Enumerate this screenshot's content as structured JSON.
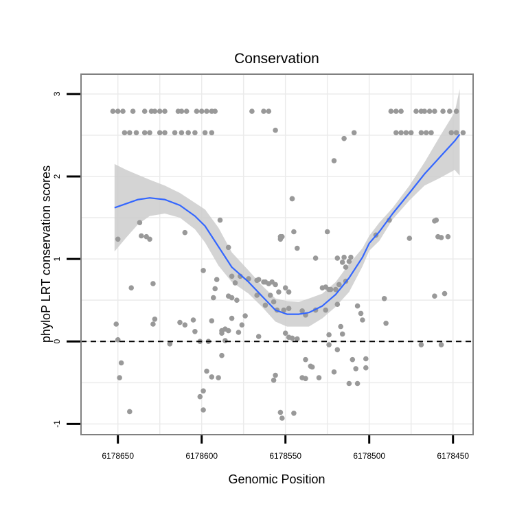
{
  "chart_data": {
    "type": "scatter",
    "title": "Conservation",
    "xlabel": "Genomic Position",
    "ylabel": "phyloP LRT conservation scores",
    "xlim": [
      6178672,
      6178438
    ],
    "ylim": [
      -1.13,
      3.24
    ],
    "x_reversed": true,
    "grid": true,
    "xticks": [
      6178650,
      6178600,
      6178550,
      6178500,
      6178450
    ],
    "xtick_labels": [
      "6178650",
      "6178600",
      "6178550",
      "6178500",
      "6178450"
    ],
    "yticks": [
      -1,
      0,
      1,
      2,
      3
    ],
    "ytick_labels": [
      "-1",
      "0",
      "1",
      "2",
      "3"
    ],
    "reference_line": {
      "y": 0,
      "style": "dashed",
      "color": "#000000"
    },
    "colors": {
      "points": "#999999",
      "smooth_line": "#3366FF",
      "confidence_band": "#cccccc",
      "panel_border": "#808080",
      "grid": "#ebebeb"
    },
    "points": [
      [
        6178653,
        2.79
      ],
      [
        6178650,
        2.79
      ],
      [
        6178647,
        2.79
      ],
      [
        6178641,
        2.79
      ],
      [
        6178634,
        2.79
      ],
      [
        6178630,
        2.79
      ],
      [
        6178628,
        2.79
      ],
      [
        6178625,
        2.79
      ],
      [
        6178622,
        2.79
      ],
      [
        6178614,
        2.79
      ],
      [
        6178612,
        2.79
      ],
      [
        6178609,
        2.79
      ],
      [
        6178603,
        2.79
      ],
      [
        6178600,
        2.79
      ],
      [
        6178597,
        2.79
      ],
      [
        6178594,
        2.79
      ],
      [
        6178592,
        2.79
      ],
      [
        6178570,
        2.79
      ],
      [
        6178563,
        2.79
      ],
      [
        6178560,
        2.79
      ],
      [
        6178487,
        2.79
      ],
      [
        6178484,
        2.79
      ],
      [
        6178481,
        2.79
      ],
      [
        6178472,
        2.79
      ],
      [
        6178469,
        2.79
      ],
      [
        6178467,
        2.79
      ],
      [
        6178464,
        2.79
      ],
      [
        6178461,
        2.79
      ],
      [
        6178456,
        2.79
      ],
      [
        6178452,
        2.79
      ],
      [
        6178448,
        2.79
      ],
      [
        6178646,
        2.53
      ],
      [
        6178643,
        2.53
      ],
      [
        6178639,
        2.53
      ],
      [
        6178634,
        2.53
      ],
      [
        6178631,
        2.53
      ],
      [
        6178625,
        2.53
      ],
      [
        6178622,
        2.53
      ],
      [
        6178616,
        2.53
      ],
      [
        6178612,
        2.53
      ],
      [
        6178608,
        2.53
      ],
      [
        6178604,
        2.53
      ],
      [
        6178598,
        2.53
      ],
      [
        6178594,
        2.53
      ],
      [
        6178484,
        2.53
      ],
      [
        6178481,
        2.53
      ],
      [
        6178478,
        2.53
      ],
      [
        6178475,
        2.53
      ],
      [
        6178469,
        2.53
      ],
      [
        6178466,
        2.53
      ],
      [
        6178463,
        2.53
      ],
      [
        6178451,
        2.53
      ],
      [
        6178448,
        2.53
      ],
      [
        6178444,
        2.53
      ],
      [
        6178556,
        2.56
      ],
      [
        6178515,
        2.46
      ],
      [
        6178509,
        2.53
      ],
      [
        6178521,
        2.19
      ],
      [
        6178546,
        1.73
      ],
      [
        6178546,
        1.73
      ],
      [
        6178488,
        1.47
      ],
      [
        6178460,
        1.47
      ],
      [
        6178461,
        1.46
      ],
      [
        6178637,
        1.44
      ],
      [
        6178610,
        1.32
      ],
      [
        6178525,
        1.33
      ],
      [
        6178636,
        1.28
      ],
      [
        6178633,
        1.27
      ],
      [
        6178631,
        1.24
      ],
      [
        6178650,
        1.24
      ],
      [
        6178589,
        1.47
      ],
      [
        6178552,
        1.27
      ],
      [
        6178553,
        1.27
      ],
      [
        6178553,
        1.24
      ],
      [
        6178545,
        1.33
      ],
      [
        6178584,
        1.14
      ],
      [
        6178543,
        1.13
      ],
      [
        6178519,
        1.01
      ],
      [
        6178515,
        1.02
      ],
      [
        6178511,
        1.02
      ],
      [
        6178496,
        1.29
      ],
      [
        6178476,
        1.25
      ],
      [
        6178459,
        1.27
      ],
      [
        6178457,
        1.26
      ],
      [
        6178453,
        1.27
      ],
      [
        6178629,
        0.7
      ],
      [
        6178591,
        0.75
      ],
      [
        6178599,
        0.86
      ],
      [
        6178582,
        0.79
      ],
      [
        6178577,
        0.79
      ],
      [
        6178580,
        0.71
      ],
      [
        6178572,
        0.76
      ],
      [
        6178566,
        0.75
      ],
      [
        6178567,
        0.74
      ],
      [
        6178563,
        0.72
      ],
      [
        6178562,
        0.72
      ],
      [
        6178560,
        0.7
      ],
      [
        6178558,
        0.72
      ],
      [
        6178556,
        0.69
      ],
      [
        6178554,
        0.6
      ],
      [
        6178550,
        0.65
      ],
      [
        6178528,
        0.65
      ],
      [
        6178526,
        0.66
      ],
      [
        6178524,
        0.63
      ],
      [
        6178523,
        0.63
      ],
      [
        6178520,
        0.63
      ],
      [
        6178518,
        0.69
      ],
      [
        6178514,
        0.73
      ],
      [
        6178514,
        0.9
      ],
      [
        6178516,
        0.96
      ],
      [
        6178512,
        0.97
      ],
      [
        6178532,
        1.01
      ],
      [
        6178548,
        0.6
      ],
      [
        6178642,
        0.65
      ],
      [
        6178567,
        0.56
      ],
      [
        6178559,
        0.56
      ],
      [
        6178557,
        0.48
      ],
      [
        6178592,
        0.64
      ],
      [
        6178584,
        0.55
      ],
      [
        6178579,
        0.5
      ],
      [
        6178593,
        0.53
      ],
      [
        6178582,
        0.53
      ],
      [
        6178491,
        0.52
      ],
      [
        6178461,
        0.55
      ],
      [
        6178455,
        0.58
      ],
      [
        6178562,
        0.44
      ],
      [
        6178548,
        0.4
      ],
      [
        6178551,
        0.38
      ],
      [
        6178555,
        0.38
      ],
      [
        6178540,
        0.37
      ],
      [
        6178532,
        0.38
      ],
      [
        6178538,
        0.32
      ],
      [
        6178526,
        0.38
      ],
      [
        6178519,
        0.45
      ],
      [
        6178507,
        0.43
      ],
      [
        6178505,
        0.34
      ],
      [
        6178504,
        0.26
      ],
      [
        6178651,
        0.21
      ],
      [
        6178629,
        0.21
      ],
      [
        6178628,
        0.27
      ],
      [
        6178605,
        0.26
      ],
      [
        6178594,
        0.25
      ],
      [
        6178582,
        0.28
      ],
      [
        6178574,
        0.31
      ],
      [
        6178576,
        0.2
      ],
      [
        6178578,
        0.11
      ],
      [
        6178584,
        0.13
      ],
      [
        6178588,
        0.13
      ],
      [
        6178586,
        0.15
      ],
      [
        6178588,
        0.1
      ],
      [
        6178517,
        0.18
      ],
      [
        6178516,
        0.09
      ],
      [
        6178524,
        0.08
      ],
      [
        6178550,
        0.1
      ],
      [
        6178548,
        0.05
      ],
      [
        6178546,
        0.04
      ],
      [
        6178543,
        0.03
      ],
      [
        6178566,
        0.06
      ],
      [
        6178586,
        0.01
      ],
      [
        6178601,
        0.0
      ],
      [
        6178596,
        0.0
      ],
      [
        6178650,
        0.02
      ],
      [
        6178619,
        -0.03
      ],
      [
        6178490,
        0.22
      ],
      [
        6178469,
        -0.04
      ],
      [
        6178457,
        -0.04
      ],
      [
        6178604,
        0.12
      ],
      [
        6178610,
        0.2
      ],
      [
        6178613,
        0.23
      ],
      [
        6178588,
        -0.17
      ],
      [
        6178538,
        -0.22
      ],
      [
        6178534,
        -0.31
      ],
      [
        6178535,
        -0.3
      ],
      [
        6178540,
        -0.44
      ],
      [
        6178538,
        -0.45
      ],
      [
        6178530,
        -0.44
      ],
      [
        6178521,
        -0.37
      ],
      [
        6178510,
        -0.22
      ],
      [
        6178508,
        -0.33
      ],
      [
        6178502,
        -0.32
      ],
      [
        6178524,
        -0.04
      ],
      [
        6178502,
        -0.21
      ],
      [
        6178519,
        -0.1
      ],
      [
        6178648,
        -0.26
      ],
      [
        6178597,
        -0.36
      ],
      [
        6178594,
        -0.43
      ],
      [
        6178590,
        -0.44
      ],
      [
        6178649,
        -0.44
      ],
      [
        6178557,
        -0.47
      ],
      [
        6178556,
        -0.41
      ],
      [
        6178507,
        -0.51
      ],
      [
        6178512,
        -0.51
      ],
      [
        6178599,
        -0.6
      ],
      [
        6178643,
        -0.85
      ],
      [
        6178601,
        -0.67
      ],
      [
        6178599,
        -0.83
      ],
      [
        6178552,
        -0.93
      ],
      [
        6178545,
        -0.87
      ],
      [
        6178553,
        -0.86
      ]
    ],
    "smooth_line": {
      "x": [
        6178652,
        6178645,
        6178638,
        6178631,
        6178622,
        6178613,
        6178604,
        6178598,
        6178590,
        6178582,
        6178572,
        6178564,
        6178556,
        6178549,
        6178542,
        6178536,
        6178528,
        6178520,
        6178512,
        6178504,
        6178500,
        6178494,
        6178486,
        6178476,
        6178467,
        6178458,
        6178449,
        6178446
      ],
      "y": [
        1.62,
        1.67,
        1.72,
        1.74,
        1.72,
        1.65,
        1.52,
        1.4,
        1.15,
        0.9,
        0.72,
        0.55,
        0.38,
        0.33,
        0.33,
        0.35,
        0.43,
        0.57,
        0.77,
        1.02,
        1.19,
        1.33,
        1.55,
        1.8,
        2.03,
        2.23,
        2.43,
        2.51
      ]
    },
    "confidence_band": {
      "upper": [
        2.15,
        2.08,
        2.02,
        1.96,
        1.89,
        1.8,
        1.68,
        1.6,
        1.38,
        1.08,
        0.86,
        0.68,
        0.52,
        0.49,
        0.48,
        0.52,
        0.58,
        0.72,
        0.94,
        1.13,
        1.28,
        1.44,
        1.62,
        1.89,
        2.17,
        2.48,
        2.78,
        3.06
      ],
      "lower": [
        1.09,
        1.26,
        1.42,
        1.52,
        1.55,
        1.5,
        1.36,
        1.2,
        0.92,
        0.72,
        0.58,
        0.42,
        0.24,
        0.18,
        0.18,
        0.18,
        0.28,
        0.42,
        0.6,
        0.91,
        1.1,
        1.22,
        1.48,
        1.71,
        1.89,
        1.98,
        2.08,
        2.01
      ]
    }
  }
}
